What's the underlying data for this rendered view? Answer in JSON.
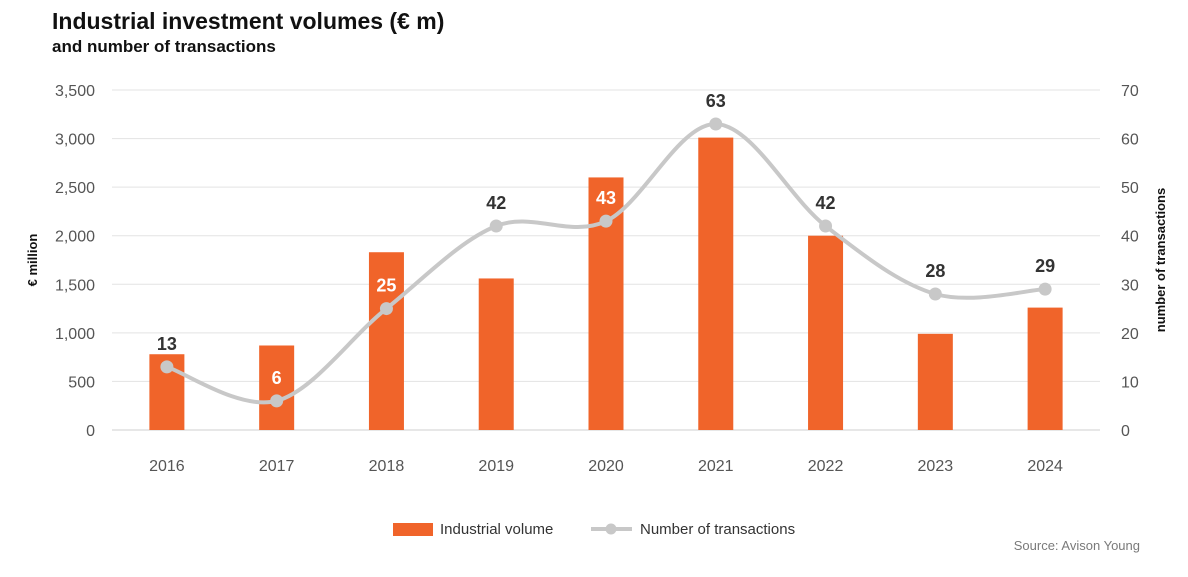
{
  "chart_data": {
    "type": "bar",
    "title": "Industrial investment volumes (€ m)",
    "subtitle": "and number of transactions",
    "categories": [
      "2016",
      "2017",
      "2018",
      "2019",
      "2020",
      "2021",
      "2022",
      "2023",
      "2024"
    ],
    "series": [
      {
        "name": "Industrial volume",
        "type": "bar",
        "axis": "left",
        "color": "#F0642A",
        "values": [
          780,
          870,
          1830,
          1560,
          2600,
          3010,
          2000,
          990,
          1260
        ]
      },
      {
        "name": "Number of transactions",
        "type": "line",
        "axis": "right",
        "color": "#C8C8C8",
        "values": [
          13,
          6,
          25,
          42,
          43,
          63,
          42,
          28,
          29
        ]
      }
    ],
    "ylabel": "€ million",
    "ylabel_right": "number of transactions",
    "ylim": [
      0,
      3500
    ],
    "ylim_right": [
      0,
      70
    ],
    "yticks": [
      "0",
      "500",
      "1,000",
      "1,500",
      "2,000",
      "2,500",
      "3,000",
      "3,500"
    ],
    "yticks_right": [
      "0",
      "10",
      "20",
      "30",
      "40",
      "50",
      "60",
      "70"
    ],
    "grid": true,
    "legend_position": "bottom"
  },
  "legend": {
    "volume_label": "Industrial volume",
    "transactions_label": "Number of transactions"
  },
  "source": "Source: Avison Young"
}
